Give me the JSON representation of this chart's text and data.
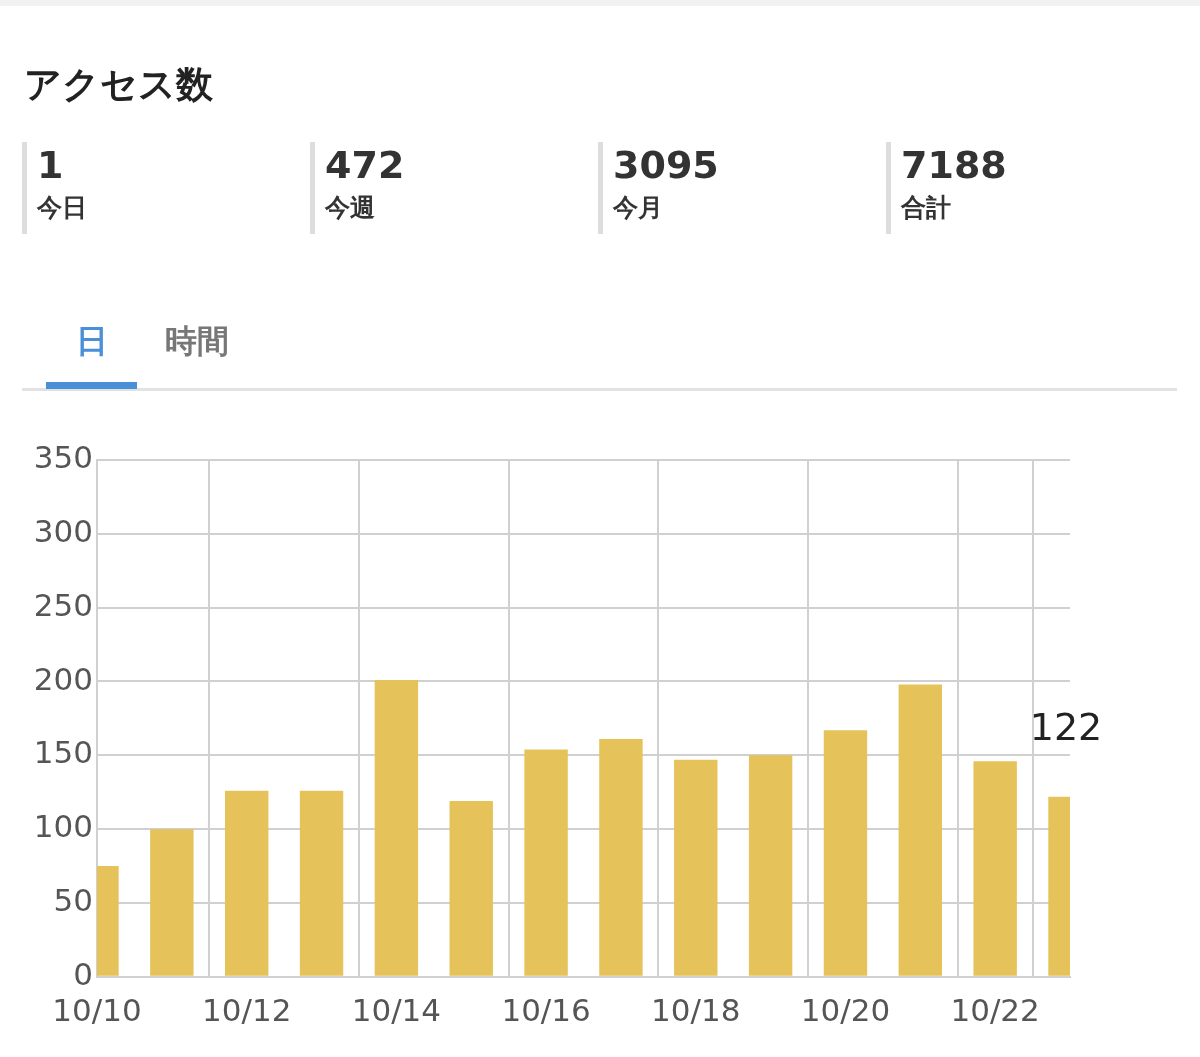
{
  "chart_data": {
    "type": "bar",
    "title": "アクセス数",
    "annotations": [
      "1",
      "今日",
      "472",
      "今週",
      "3095",
      "今月",
      "7188",
      "合計",
      "日",
      "時間"
    ],
    "categories": [
      "10/10",
      null,
      "10/12",
      null,
      "10/14",
      null,
      "10/16",
      null,
      "10/18",
      null,
      "10/20",
      null,
      "10/22",
      null
    ],
    "values": [
      75,
      100,
      126,
      126,
      201,
      119,
      154,
      161,
      147,
      150,
      167,
      198,
      146,
      122
    ],
    "value_labels": [
      null,
      null,
      null,
      null,
      null,
      null,
      null,
      null,
      null,
      null,
      null,
      null,
      null,
      "122"
    ],
    "color": "#e5c35a",
    "ylim": [
      0,
      350
    ],
    "yticks": [
      0,
      50,
      100,
      150,
      200,
      250,
      300,
      350
    ],
    "grid": true
  }
}
